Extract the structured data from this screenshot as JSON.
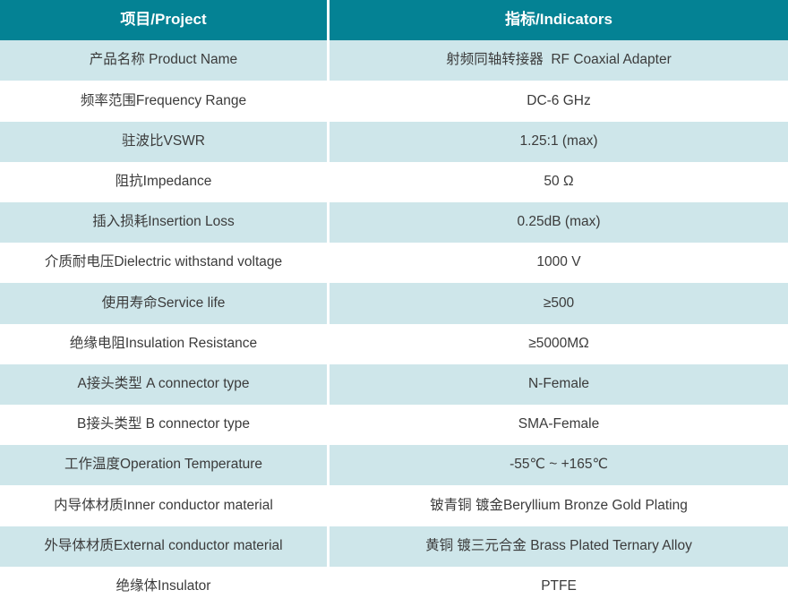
{
  "colors": {
    "header_background": "#048294",
    "alt_row_background": "#cee6ea",
    "row_background": "#ffffff",
    "header_text": "#ffffff",
    "body_text": "#3b3b3b"
  },
  "table": {
    "header": {
      "project": "项目/Project",
      "indicator": "指标/Indicators"
    },
    "rows": [
      {
        "project": "产品名称 Product Name",
        "indicator": "射频同轴转接器  RF Coaxial Adapter"
      },
      {
        "project": "频率范围Frequency Range",
        "indicator": "DC-6 GHz"
      },
      {
        "project": "驻波比VSWR",
        "indicator": "1.25:1 (max)"
      },
      {
        "project": "阻抗Impedance",
        "indicator": "50 Ω"
      },
      {
        "project": "插入损耗Insertion Loss",
        "indicator": "0.25dB (max)"
      },
      {
        "project": "介质耐电压Dielectric withstand voltage",
        "indicator": "1000 V"
      },
      {
        "project": "使用寿命Service life",
        "indicator": "≥500"
      },
      {
        "project": "绝缘电阻Insulation Resistance",
        "indicator": "≥5000MΩ"
      },
      {
        "project": "A接头类型 A connector type",
        "indicator": "N-Female"
      },
      {
        "project": "B接头类型 B connector type",
        "indicator": "SMA-Female"
      },
      {
        "project": "工作温度Operation Temperature",
        "indicator": "-55℃ ~ +165℃"
      },
      {
        "project": "内导体材质Inner conductor material",
        "indicator": "铍青铜 镀金Beryllium Bronze Gold Plating"
      },
      {
        "project": "外导体材质External conductor material",
        "indicator": "黄铜 镀三元合金 Brass Plated Ternary Alloy"
      },
      {
        "project": "绝缘体Insulator",
        "indicator": "PTFE"
      }
    ]
  }
}
